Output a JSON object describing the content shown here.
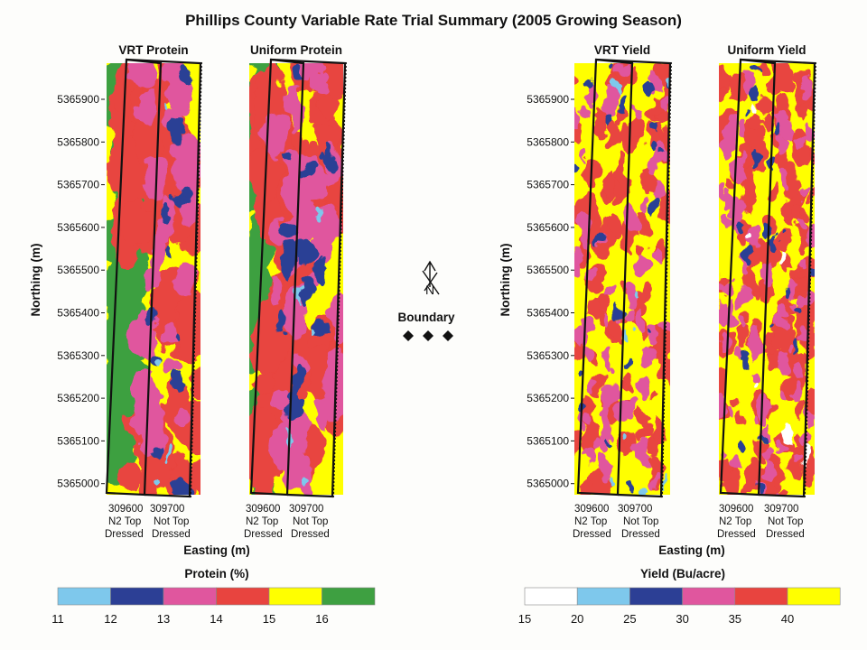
{
  "title": "Phillips County Variable Rate Trial Summary (2005 Growing Season)",
  "maps": [
    {
      "id": "vrt-protein",
      "label": "VRT Protein",
      "scale": "protein"
    },
    {
      "id": "uniform-protein",
      "label": "Uniform Protein",
      "scale": "protein"
    },
    {
      "id": "vrt-yield",
      "label": "VRT Yield",
      "scale": "yield"
    },
    {
      "id": "uniform-yield",
      "label": "Uniform Yield",
      "scale": "yield"
    }
  ],
  "northing_axis": {
    "label": "Northing (m)",
    "ticks": [
      "5365900",
      "5365800",
      "5365700",
      "5365600",
      "5365500",
      "5365400",
      "5365300",
      "5365200",
      "5365100",
      "5365000"
    ]
  },
  "easting_axis": {
    "label": "Easting (m)",
    "ticks": [
      "309600",
      "309700"
    ]
  },
  "strip_labels": {
    "left_line1": "N2 Top",
    "left_line2": "Dressed",
    "right_line1": "Not Top",
    "right_line2": "Dressed"
  },
  "north_arrow_label": "N",
  "boundary_label": "Boundary",
  "legends": {
    "protein": {
      "title": "Protein (%)",
      "ticks": [
        "11",
        "12",
        "13",
        "14",
        "15",
        "16"
      ],
      "colors": [
        "#7ec8ec",
        "#2c3f95",
        "#e0569e",
        "#e8443f",
        "#ffff00",
        "#3ea041"
      ]
    },
    "yield": {
      "title": "Yield (Bu/acre)",
      "ticks": [
        "15",
        "20",
        "25",
        "30",
        "35",
        "40"
      ],
      "colors": [
        "#ffffff",
        "#7ec8ec",
        "#2c3f95",
        "#e0569e",
        "#e8443f",
        "#ffff00"
      ]
    }
  }
}
